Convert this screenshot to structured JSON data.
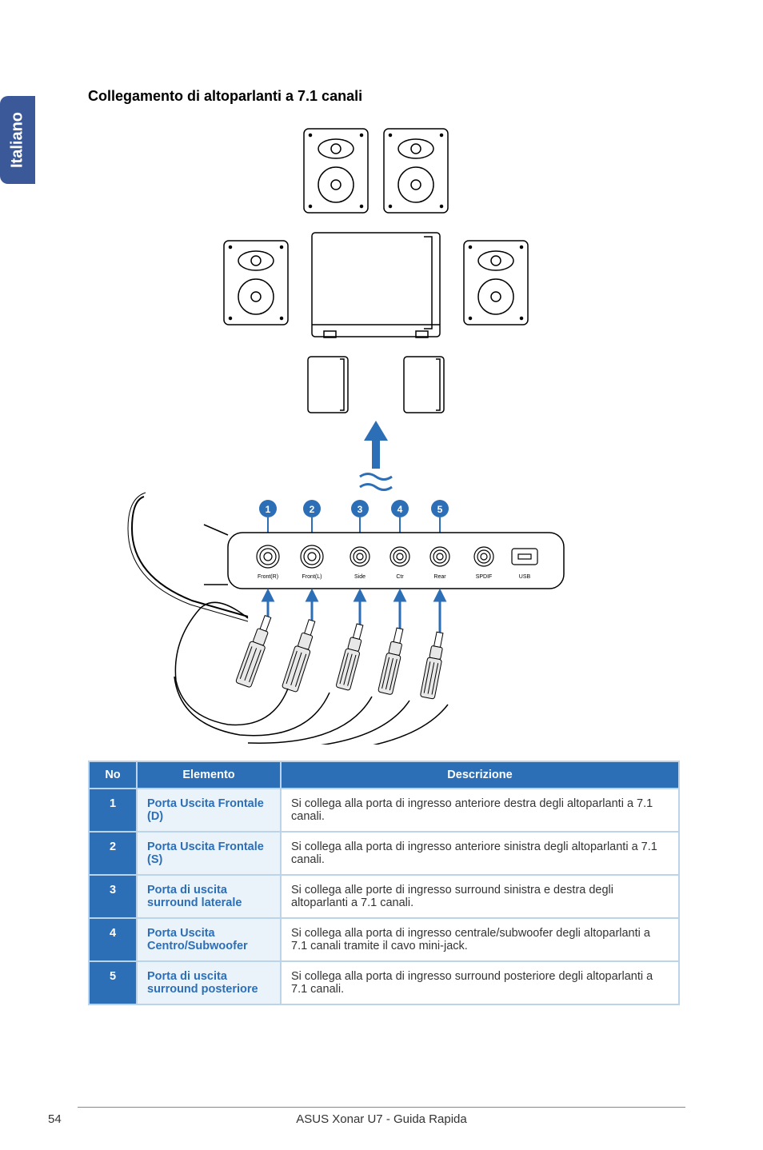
{
  "sideTab": "Italiano",
  "title": "Collegamento di altoparlanti a 7.1 canali",
  "diagram": {
    "numbers": [
      "1",
      "2",
      "3",
      "4",
      "5"
    ],
    "portLabels": [
      "Front(R)",
      "Front(L)",
      "Side",
      "Ctr",
      "Rear",
      "SPDIF",
      "USB"
    ],
    "colors": {
      "badge_fill": "#2d6fb7",
      "badge_text": "#ffffff",
      "arrow": "#2d6fb7",
      "stroke": "#000000",
      "bg": "#ffffff"
    }
  },
  "table": {
    "headers": {
      "no": "No",
      "elemento": "Elemento",
      "descrizione": "Descrizione"
    },
    "rows": [
      {
        "no": "1",
        "elemento": "Porta Uscita Frontale (D)",
        "descrizione": "Si collega alla porta di ingresso anteriore destra degli altoparlanti a 7.1 canali."
      },
      {
        "no": "2",
        "elemento": "Porta Uscita Frontale (S)",
        "descrizione": "Si collega alla porta di ingresso anteriore sinistra degli altoparlanti a 7.1 canali."
      },
      {
        "no": "3",
        "elemento": "Porta di uscita surround laterale",
        "descrizione": "Si collega alle porte di ingresso surround sinistra e destra degli altoparlanti a 7.1 canali."
      },
      {
        "no": "4",
        "elemento": "Porta Uscita Centro/Subwoofer",
        "descrizione": "Si collega alla porta di ingresso centrale/subwoofer degli altoparlanti a 7.1 canali tramite il cavo mini-jack."
      },
      {
        "no": "5",
        "elemento": "Porta di uscita surround posteriore",
        "descrizione": "Si collega alla porta di ingresso surround posteriore degli altoparlanti a 7.1 canali."
      }
    ]
  },
  "footer": "ASUS Xonar U7 - Guida Rapida",
  "pageNum": "54"
}
